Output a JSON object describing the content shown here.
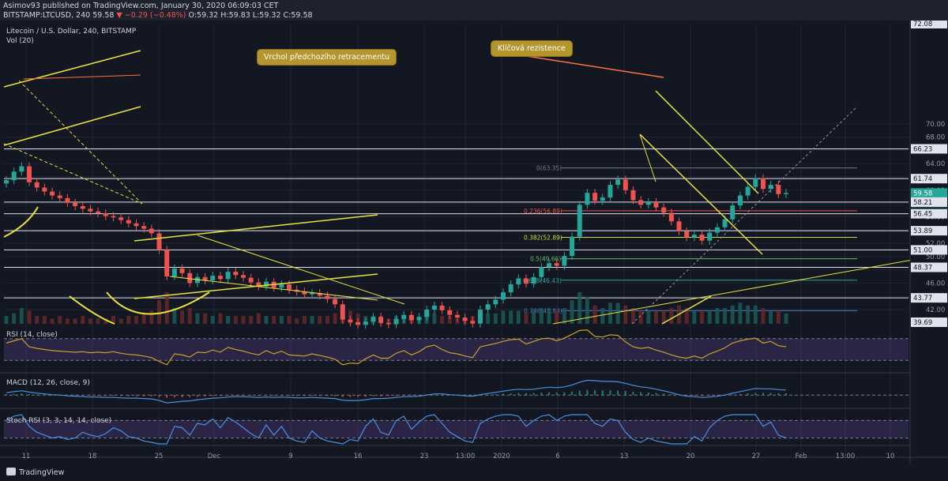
{
  "header": {
    "line1": "Asimov93 published on TradingView.com, January 30, 2020 06:09:03 CET",
    "symbol": "BITSTAMP:LTCUSD, 240",
    "last": "59.58",
    "change": "−0.29 (−0.48%)",
    "ohlc": "O:59.32 H:59.83 L:59.32 C:59.58"
  },
  "chart_title": "Litecoin / U.S. Dollar, 240, BITSTAMP",
  "volume_label": "Vol (20)",
  "annotations": {
    "callout_left": "Vrchol předchozího retracementu",
    "callout_right": "Klíčová rezistence"
  },
  "indicators": {
    "rsi": "RSI (14, close)",
    "macd": "MACD (12, 26, close, 9)",
    "stoch": "Stoch RSI (3, 3, 14, 14, close)"
  },
  "footer": {
    "brand": "TradingView"
  },
  "colors": {
    "background": "#131722",
    "up": "#26a69a",
    "down": "#ef5350",
    "trendline": "#e8e23b",
    "indicator_band": "#7e57c2"
  },
  "chart_data": [
    {
      "type": "candlestick",
      "x_ticks": [
        "11",
        "18",
        "25",
        "Dec",
        "9",
        "16",
        "23",
        "13:00",
        "2020",
        "6",
        "13",
        "20",
        "27",
        "Feb",
        "13:00",
        "10"
      ],
      "y_ticks": [
        42.0,
        44.0,
        46.0,
        48.0,
        50.0,
        52.0,
        54.0,
        56.0,
        58.0,
        60.0,
        62.0,
        64.0,
        66.0,
        68.0,
        70.0
      ],
      "price_labels": [
        "72.08",
        "66.23",
        "61.74",
        "59.58",
        "02:50:58",
        "58.21",
        "56.45",
        "53.89",
        "51.00",
        "48.37",
        "43.77",
        "39.69"
      ],
      "horizontal_levels": [
        66.23,
        61.74,
        58.21,
        56.45,
        53.89,
        51.0,
        48.37,
        43.77
      ],
      "fibonacci": [
        {
          "label": "0(63.35)",
          "value": 63.35
        },
        {
          "label": "0.236(56.89)",
          "value": 56.89
        },
        {
          "label": "0.382(52.89)",
          "value": 52.89
        },
        {
          "label": "0.5(49.66)",
          "value": 49.66
        },
        {
          "label": "0.618(46.43)",
          "value": 46.43
        },
        {
          "label": "0.786(41.83)",
          "value": 41.83
        }
      ],
      "closes": [
        61.5,
        62.8,
        63.6,
        61.2,
        60.4,
        59.8,
        59.2,
        58.8,
        58.1,
        57.6,
        57.2,
        56.8,
        56.5,
        56.1,
        55.9,
        55.5,
        55.0,
        54.6,
        54.2,
        53.5,
        51.0,
        47.0,
        48.2,
        47.5,
        46.0,
        46.9,
        46.4,
        47.1,
        46.6,
        47.7,
        47.2,
        46.8,
        46.1,
        45.5,
        46.2,
        45.3,
        45.8,
        45.0,
        44.7,
        44.3,
        44.5,
        44.1,
        43.6,
        42.8,
        40.5,
        40.1,
        39.7,
        40.2,
        40.9,
        40.0,
        39.8,
        40.6,
        41.2,
        40.4,
        40.9,
        42.0,
        42.6,
        41.9,
        41.2,
        40.8,
        40.3,
        39.9,
        42.0,
        42.8,
        43.5,
        44.6,
        45.8,
        46.7,
        45.9,
        46.9,
        48.4,
        49.0,
        48.6,
        50.1,
        53.0,
        57.8,
        59.6,
        58.4,
        58.9,
        60.8,
        61.6,
        60.0,
        58.5,
        57.8,
        58.2,
        57.4,
        56.6,
        55.3,
        53.8,
        52.9,
        53.3,
        52.4,
        53.6,
        54.4,
        55.6,
        57.7,
        59.2,
        60.5,
        61.8,
        60.2,
        60.8,
        59.4,
        59.58
      ],
      "volume": [
        3,
        4,
        6,
        5,
        3,
        3,
        2,
        3,
        2,
        2,
        3,
        2,
        2,
        2,
        3,
        2,
        3,
        3,
        4,
        5,
        9,
        12,
        6,
        5,
        6,
        4,
        4,
        3,
        4,
        3,
        3,
        3,
        3,
        4,
        3,
        3,
        3,
        3,
        2,
        3,
        3,
        3,
        3,
        4,
        7,
        5,
        4,
        3,
        3,
        3,
        2,
        3,
        3,
        2,
        2,
        4,
        4,
        3,
        3,
        2,
        2,
        3,
        4,
        4,
        4,
        5,
        5,
        5,
        4,
        5,
        6,
        6,
        5,
        6,
        9,
        12,
        10,
        7,
        6,
        8,
        8,
        7,
        6,
        5,
        5,
        5,
        5,
        6,
        7,
        6,
        5,
        5,
        5,
        6,
        6,
        7,
        8,
        7,
        7,
        6,
        5,
        5,
        4
      ]
    },
    {
      "type": "line",
      "name": "RSI (14, close)",
      "y_ticks": [
        25.0,
        50.0,
        75.0
      ],
      "values": [
        62,
        66,
        70,
        55,
        52,
        50,
        48,
        47,
        46,
        45,
        46,
        44,
        45,
        44,
        46,
        43,
        41,
        40,
        38,
        35,
        28,
        22,
        42,
        40,
        36,
        45,
        44,
        49,
        45,
        54,
        50,
        47,
        43,
        40,
        48,
        42,
        47,
        40,
        39,
        38,
        42,
        39,
        36,
        32,
        22,
        25,
        24,
        33,
        40,
        34,
        34,
        43,
        48,
        40,
        46,
        55,
        58,
        50,
        44,
        42,
        38,
        35,
        55,
        58,
        61,
        65,
        68,
        69,
        60,
        65,
        70,
        71,
        66,
        71,
        78,
        85,
        86,
        74,
        73,
        77,
        76,
        64,
        55,
        52,
        54,
        49,
        45,
        40,
        36,
        34,
        38,
        34,
        42,
        47,
        53,
        62,
        66,
        69,
        71,
        62,
        65,
        57,
        55
      ]
    },
    {
      "type": "line",
      "name": "MACD (12, 26, close, 9)",
      "y_ticks": [
        0.0
      ],
      "values": [
        0.6,
        0.9,
        1.1,
        0.8,
        0.5,
        0.3,
        0.1,
        0.0,
        -0.2,
        -0.3,
        -0.4,
        -0.5,
        -0.5,
        -0.6,
        -0.6,
        -0.7,
        -0.8,
        -0.8,
        -0.9,
        -1.0,
        -1.4,
        -2.0,
        -1.8,
        -1.6,
        -1.5,
        -1.2,
        -1.0,
        -0.8,
        -0.7,
        -0.5,
        -0.4,
        -0.4,
        -0.5,
        -0.6,
        -0.5,
        -0.6,
        -0.5,
        -0.6,
        -0.7,
        -0.7,
        -0.6,
        -0.7,
        -0.8,
        -0.9,
        -1.3,
        -1.4,
        -1.4,
        -1.2,
        -0.9,
        -0.9,
        -0.8,
        -0.6,
        -0.4,
        -0.4,
        -0.3,
        0.0,
        0.3,
        0.3,
        0.1,
        0.0,
        -0.2,
        -0.3,
        0.1,
        0.4,
        0.7,
        1.0,
        1.3,
        1.5,
        1.4,
        1.5,
        1.8,
        2.0,
        1.9,
        2.1,
        2.6,
        3.3,
        3.8,
        3.7,
        3.5,
        3.5,
        3.4,
        3.0,
        2.5,
        2.1,
        1.9,
        1.5,
        1.1,
        0.6,
        0.1,
        -0.3,
        -0.4,
        -0.6,
        -0.5,
        -0.3,
        0.0,
        0.5,
        0.9,
        1.3,
        1.7,
        1.6,
        1.6,
        1.4,
        1.3
      ]
    },
    {
      "type": "line",
      "name": "Stoch RSI (3, 3, 14, 14, close)",
      "y_ticks": [
        0.0,
        100.0
      ],
      "values": [
        80,
        95,
        100,
        60,
        40,
        30,
        20,
        25,
        15,
        20,
        40,
        30,
        25,
        35,
        55,
        45,
        25,
        20,
        10,
        5,
        0,
        0,
        60,
        55,
        30,
        70,
        65,
        85,
        55,
        90,
        75,
        55,
        35,
        20,
        65,
        30,
        60,
        20,
        10,
        5,
        45,
        20,
        10,
        5,
        0,
        15,
        10,
        60,
        85,
        40,
        30,
        80,
        95,
        50,
        75,
        95,
        100,
        70,
        40,
        25,
        10,
        5,
        70,
        85,
        95,
        100,
        100,
        95,
        60,
        80,
        95,
        100,
        80,
        95,
        100,
        100,
        100,
        70,
        60,
        85,
        80,
        40,
        15,
        5,
        20,
        10,
        5,
        0,
        0,
        0,
        25,
        10,
        55,
        80,
        95,
        100,
        100,
        100,
        100,
        60,
        75,
        30,
        20
      ]
    }
  ]
}
